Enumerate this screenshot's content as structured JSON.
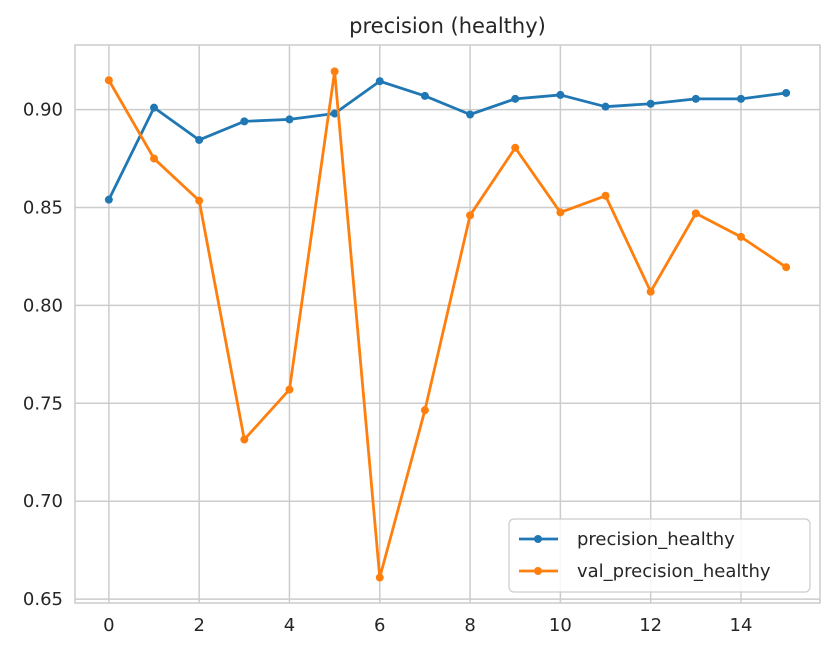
{
  "chart_data": {
    "type": "line",
    "title": "precision (healthy)",
    "xlabel": "",
    "ylabel": "",
    "x": [
      0,
      1,
      2,
      3,
      4,
      5,
      6,
      7,
      8,
      9,
      10,
      11,
      12,
      13,
      14,
      15
    ],
    "xlim": [
      -0.75,
      15.75
    ],
    "ylim": [
      0.648,
      0.933
    ],
    "xticks": [
      0,
      2,
      4,
      6,
      8,
      10,
      12,
      14
    ],
    "yticks": [
      0.65,
      0.7,
      0.75,
      0.8,
      0.85,
      0.9
    ],
    "ytick_labels": [
      "0.65",
      "0.70",
      "0.75",
      "0.80",
      "0.85",
      "0.90"
    ],
    "grid": true,
    "legend_position": "bottom-right",
    "series": [
      {
        "name": "precision_healthy",
        "color": "#1f77b4",
        "values": [
          0.854,
          0.901,
          0.8845,
          0.894,
          0.895,
          0.898,
          0.9145,
          0.907,
          0.8975,
          0.9055,
          0.9075,
          0.9015,
          0.903,
          0.9055,
          0.9055,
          0.9085
        ]
      },
      {
        "name": "val_precision_healthy",
        "color": "#ff7f0e",
        "values": [
          0.915,
          0.875,
          0.8535,
          0.7315,
          0.757,
          0.9195,
          0.661,
          0.7465,
          0.846,
          0.8805,
          0.8475,
          0.856,
          0.807,
          0.847,
          0.835,
          0.8195
        ]
      }
    ]
  }
}
